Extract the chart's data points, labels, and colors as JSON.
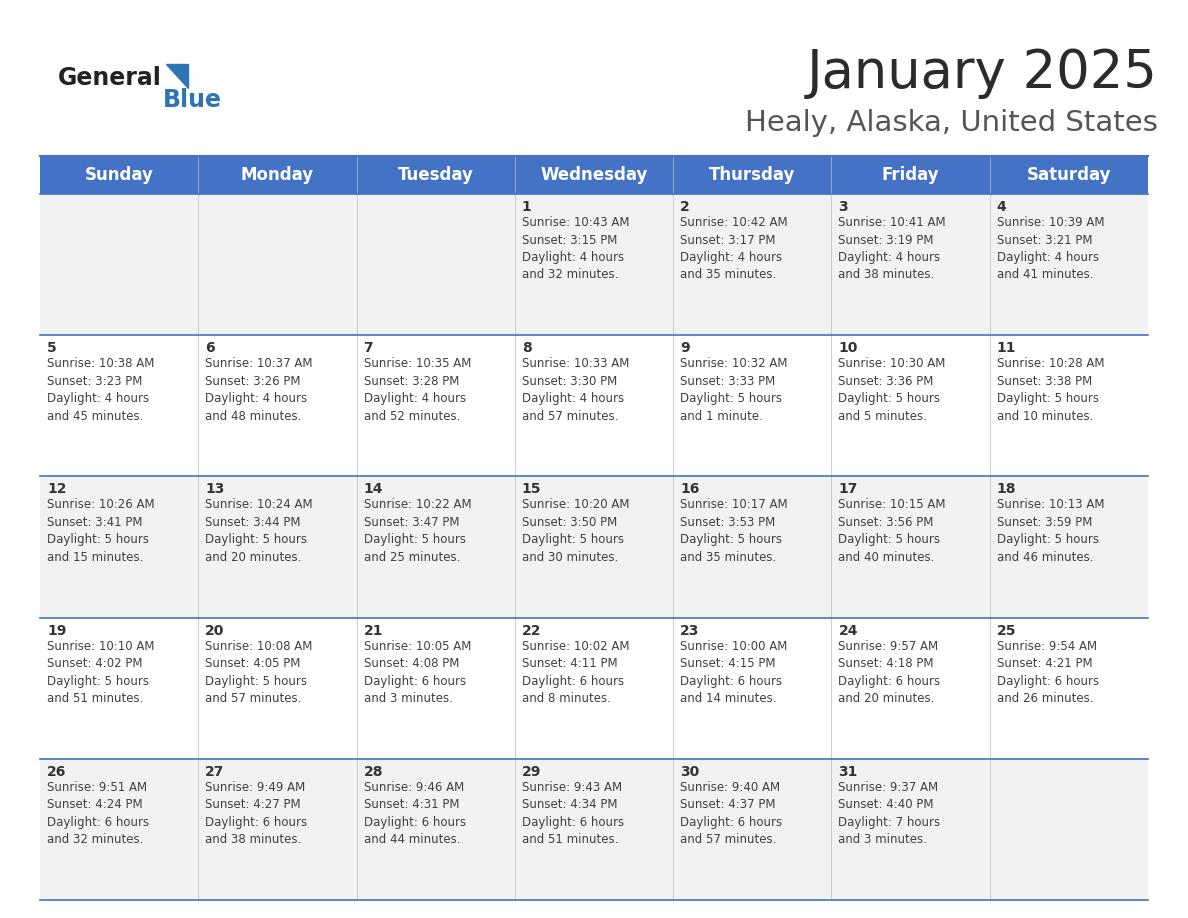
{
  "title": "January 2025",
  "subtitle": "Healy, Alaska, United States",
  "header_bg": "#4472C4",
  "header_text_color": "#FFFFFF",
  "days_of_week": [
    "Sunday",
    "Monday",
    "Tuesday",
    "Wednesday",
    "Thursday",
    "Friday",
    "Saturday"
  ],
  "row_bg_odd": "#F2F2F2",
  "row_bg_even": "#FFFFFF",
  "cell_text_color": "#404040",
  "day_num_color": "#333333",
  "border_color": "#4472C4",
  "calendar": [
    [
      {
        "day": "",
        "text": ""
      },
      {
        "day": "",
        "text": ""
      },
      {
        "day": "",
        "text": ""
      },
      {
        "day": "1",
        "text": "Sunrise: 10:43 AM\nSunset: 3:15 PM\nDaylight: 4 hours\nand 32 minutes."
      },
      {
        "day": "2",
        "text": "Sunrise: 10:42 AM\nSunset: 3:17 PM\nDaylight: 4 hours\nand 35 minutes."
      },
      {
        "day": "3",
        "text": "Sunrise: 10:41 AM\nSunset: 3:19 PM\nDaylight: 4 hours\nand 38 minutes."
      },
      {
        "day": "4",
        "text": "Sunrise: 10:39 AM\nSunset: 3:21 PM\nDaylight: 4 hours\nand 41 minutes."
      }
    ],
    [
      {
        "day": "5",
        "text": "Sunrise: 10:38 AM\nSunset: 3:23 PM\nDaylight: 4 hours\nand 45 minutes."
      },
      {
        "day": "6",
        "text": "Sunrise: 10:37 AM\nSunset: 3:26 PM\nDaylight: 4 hours\nand 48 minutes."
      },
      {
        "day": "7",
        "text": "Sunrise: 10:35 AM\nSunset: 3:28 PM\nDaylight: 4 hours\nand 52 minutes."
      },
      {
        "day": "8",
        "text": "Sunrise: 10:33 AM\nSunset: 3:30 PM\nDaylight: 4 hours\nand 57 minutes."
      },
      {
        "day": "9",
        "text": "Sunrise: 10:32 AM\nSunset: 3:33 PM\nDaylight: 5 hours\nand 1 minute."
      },
      {
        "day": "10",
        "text": "Sunrise: 10:30 AM\nSunset: 3:36 PM\nDaylight: 5 hours\nand 5 minutes."
      },
      {
        "day": "11",
        "text": "Sunrise: 10:28 AM\nSunset: 3:38 PM\nDaylight: 5 hours\nand 10 minutes."
      }
    ],
    [
      {
        "day": "12",
        "text": "Sunrise: 10:26 AM\nSunset: 3:41 PM\nDaylight: 5 hours\nand 15 minutes."
      },
      {
        "day": "13",
        "text": "Sunrise: 10:24 AM\nSunset: 3:44 PM\nDaylight: 5 hours\nand 20 minutes."
      },
      {
        "day": "14",
        "text": "Sunrise: 10:22 AM\nSunset: 3:47 PM\nDaylight: 5 hours\nand 25 minutes."
      },
      {
        "day": "15",
        "text": "Sunrise: 10:20 AM\nSunset: 3:50 PM\nDaylight: 5 hours\nand 30 minutes."
      },
      {
        "day": "16",
        "text": "Sunrise: 10:17 AM\nSunset: 3:53 PM\nDaylight: 5 hours\nand 35 minutes."
      },
      {
        "day": "17",
        "text": "Sunrise: 10:15 AM\nSunset: 3:56 PM\nDaylight: 5 hours\nand 40 minutes."
      },
      {
        "day": "18",
        "text": "Sunrise: 10:13 AM\nSunset: 3:59 PM\nDaylight: 5 hours\nand 46 minutes."
      }
    ],
    [
      {
        "day": "19",
        "text": "Sunrise: 10:10 AM\nSunset: 4:02 PM\nDaylight: 5 hours\nand 51 minutes."
      },
      {
        "day": "20",
        "text": "Sunrise: 10:08 AM\nSunset: 4:05 PM\nDaylight: 5 hours\nand 57 minutes."
      },
      {
        "day": "21",
        "text": "Sunrise: 10:05 AM\nSunset: 4:08 PM\nDaylight: 6 hours\nand 3 minutes."
      },
      {
        "day": "22",
        "text": "Sunrise: 10:02 AM\nSunset: 4:11 PM\nDaylight: 6 hours\nand 8 minutes."
      },
      {
        "day": "23",
        "text": "Sunrise: 10:00 AM\nSunset: 4:15 PM\nDaylight: 6 hours\nand 14 minutes."
      },
      {
        "day": "24",
        "text": "Sunrise: 9:57 AM\nSunset: 4:18 PM\nDaylight: 6 hours\nand 20 minutes."
      },
      {
        "day": "25",
        "text": "Sunrise: 9:54 AM\nSunset: 4:21 PM\nDaylight: 6 hours\nand 26 minutes."
      }
    ],
    [
      {
        "day": "26",
        "text": "Sunrise: 9:51 AM\nSunset: 4:24 PM\nDaylight: 6 hours\nand 32 minutes."
      },
      {
        "day": "27",
        "text": "Sunrise: 9:49 AM\nSunset: 4:27 PM\nDaylight: 6 hours\nand 38 minutes."
      },
      {
        "day": "28",
        "text": "Sunrise: 9:46 AM\nSunset: 4:31 PM\nDaylight: 6 hours\nand 44 minutes."
      },
      {
        "day": "29",
        "text": "Sunrise: 9:43 AM\nSunset: 4:34 PM\nDaylight: 6 hours\nand 51 minutes."
      },
      {
        "day": "30",
        "text": "Sunrise: 9:40 AM\nSunset: 4:37 PM\nDaylight: 6 hours\nand 57 minutes."
      },
      {
        "day": "31",
        "text": "Sunrise: 9:37 AM\nSunset: 4:40 PM\nDaylight: 7 hours\nand 3 minutes."
      },
      {
        "day": "",
        "text": ""
      }
    ]
  ],
  "logo_general_color": "#222222",
  "logo_blue_color": "#2E75B6",
  "title_fontsize": 38,
  "subtitle_fontsize": 21,
  "header_fontsize": 12,
  "day_num_fontsize": 10,
  "cell_text_fontsize": 8.5
}
